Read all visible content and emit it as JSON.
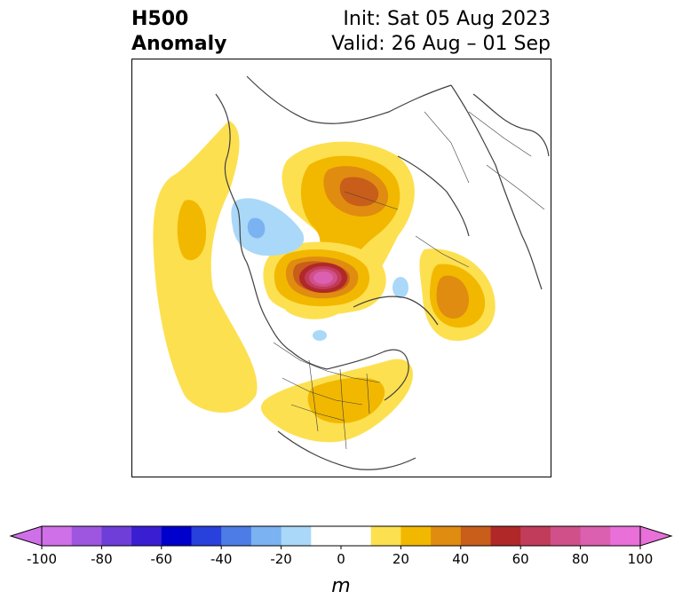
{
  "header": {
    "title_line1": "H500",
    "title_line2": "Anomaly",
    "init": "Init: Sat 05 Aug 2023",
    "valid": "Valid: 26 Aug – 01 Sep"
  },
  "colorbar": {
    "unit": "m",
    "ticks": [
      "-100",
      "-80",
      "-60",
      "-40",
      "-20",
      "0",
      "20",
      "40",
      "60",
      "80",
      "100"
    ],
    "levels": [
      -100,
      -90,
      -80,
      -70,
      -60,
      -50,
      -40,
      -30,
      -20,
      -10,
      10,
      20,
      30,
      40,
      50,
      60,
      70,
      80,
      90,
      100
    ],
    "colors": [
      "#d070e8",
      "#9e56e0",
      "#6f3ed8",
      "#3a1fd2",
      "#0000cc",
      "#2840dc",
      "#4e7ce6",
      "#7ab2f2",
      "#aad8f8",
      "#ffffff",
      "#fde050",
      "#f2b800",
      "#e08c10",
      "#c85e1a",
      "#b02828",
      "#c03c5a",
      "#d0508a",
      "#dc60b0",
      "#e870d8"
    ],
    "under_color": "#d070e8",
    "over_color": "#e870d8"
  },
  "map": {
    "projection": "north-polar stereographic",
    "frame_color": "#000000",
    "coastline_color": "#404040"
  }
}
